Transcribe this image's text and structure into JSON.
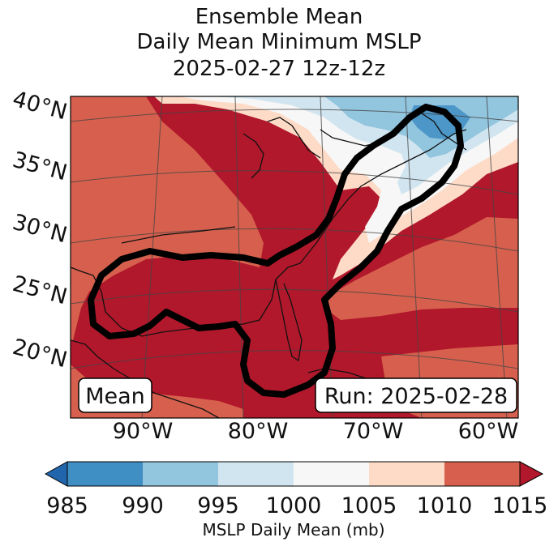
{
  "title": {
    "line1": "Ensemble Mean",
    "line2": "Daily Mean Minimum MSLP",
    "line3": "2025-02-27 12z-12z"
  },
  "map": {
    "lat_labels": [
      "40°N",
      "35°N",
      "30°N",
      "25°N",
      "20°N"
    ],
    "lon_labels": [
      "90°W",
      "80°W",
      "70°W",
      "60°W"
    ],
    "left_box": "Mean",
    "right_box": "Run: 2025-02-28"
  },
  "colorbar": {
    "ticks": [
      "985",
      "990",
      "995",
      "1000",
      "1005",
      "1010",
      "1015"
    ],
    "colors": [
      "#2166ac",
      "#3f8ec4",
      "#92c5de",
      "#d1e5f0",
      "#f7f7f7",
      "#fddbc7",
      "#d6604d",
      "#b2182b"
    ],
    "label": "MSLP Daily Mean (mb)"
  }
}
